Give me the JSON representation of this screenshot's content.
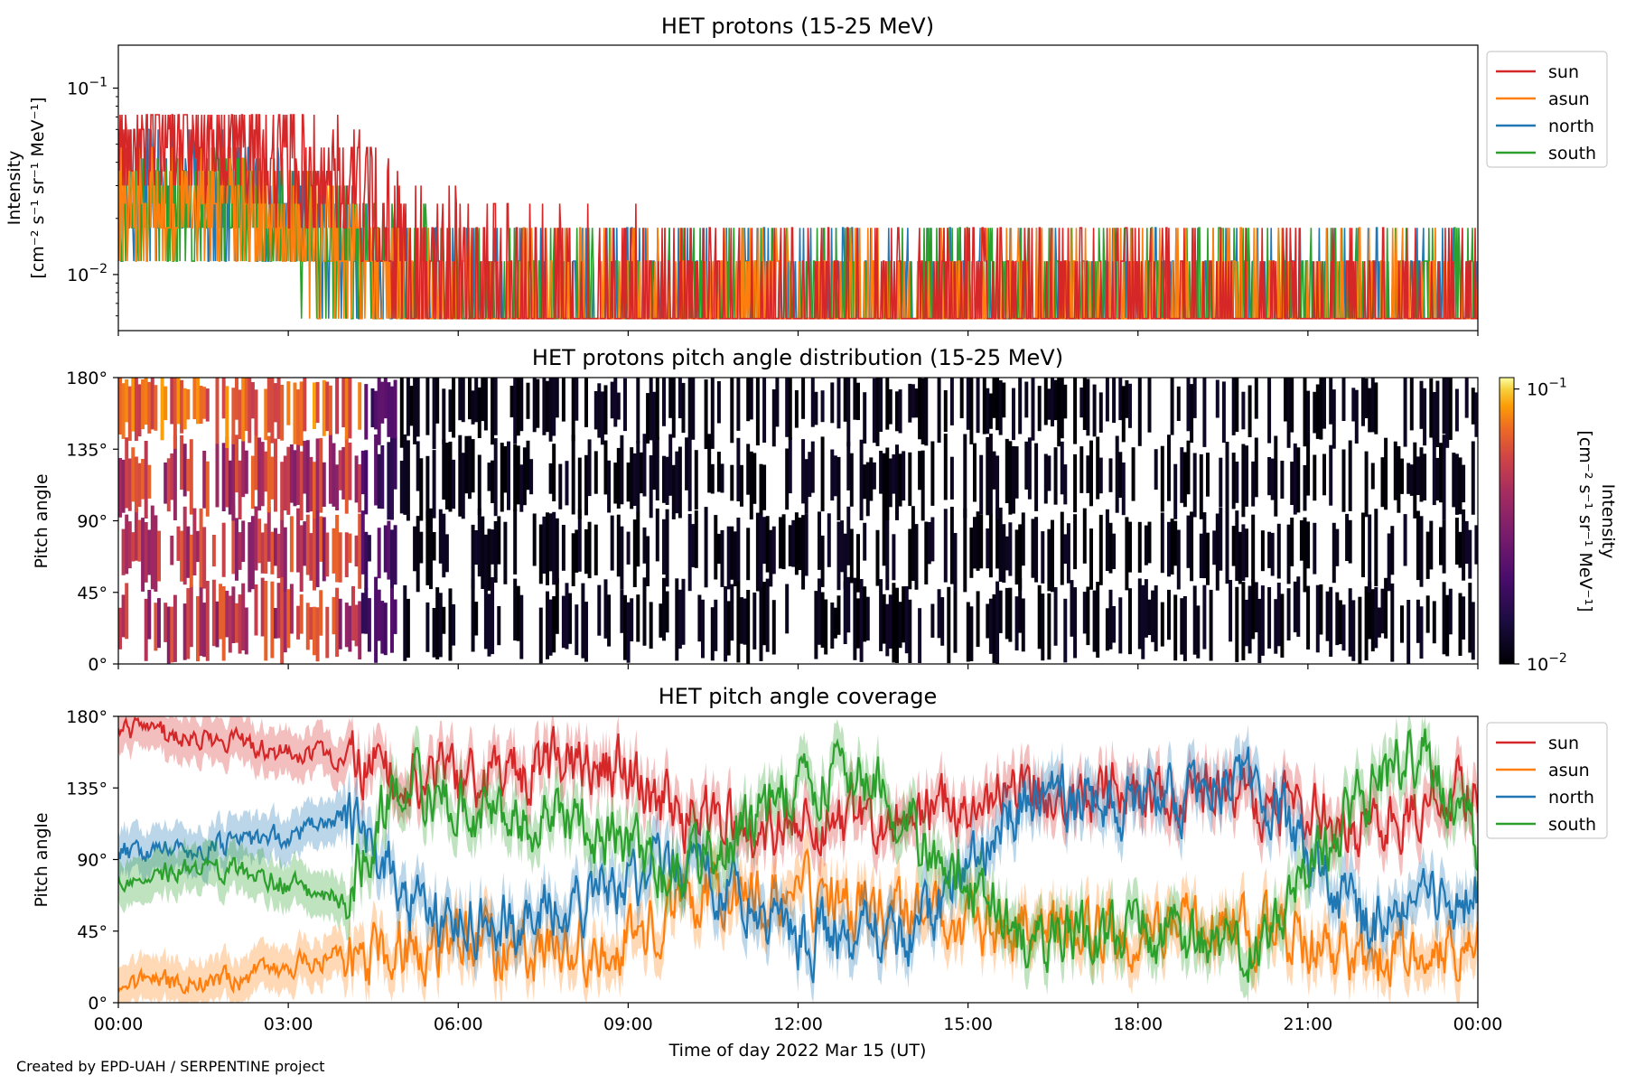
{
  "credit": "Created by EPD-UAH / SERPENTINE project",
  "colors": {
    "sun": "#d62728",
    "asun": "#ff7f0e",
    "north": "#1f77b4",
    "south": "#2ca02c"
  },
  "chart_data": [
    {
      "type": "line",
      "title": "HET protons (15-25 MeV)",
      "ylabel": [
        "Intensity",
        "[cm⁻² s⁻¹ sr⁻¹ MeV⁻¹]"
      ],
      "yscale": "log",
      "ylim": [
        0.005,
        0.17
      ],
      "yticks": [
        {
          "value": 0.1,
          "base": "10",
          "exp": "−1"
        },
        {
          "value": 0.01,
          "base": "10",
          "exp": "−2"
        }
      ],
      "xlim_hours": [
        0,
        24
      ],
      "legend": "outside-right",
      "series": [
        {
          "name": "sun",
          "profile": [
            {
              "x": "00:00",
              "y": 0.055
            },
            {
              "x": "01:00",
              "y": 0.06
            },
            {
              "x": "02:00",
              "y": 0.05
            },
            {
              "x": "03:00",
              "y": 0.04
            },
            {
              "x": "04:00",
              "y": 0.03
            },
            {
              "x": "05:00",
              "y": 0.015
            },
            {
              "x": "08:00",
              "y": 0.011
            },
            {
              "x": "12:00",
              "y": 0.009
            },
            {
              "x": "18:00",
              "y": 0.0085
            },
            {
              "x": "24:00",
              "y": 0.008
            }
          ]
        },
        {
          "name": "asun",
          "profile": [
            {
              "x": "00:00",
              "y": 0.02
            },
            {
              "x": "01:00",
              "y": 0.025
            },
            {
              "x": "02:00",
              "y": 0.022
            },
            {
              "x": "03:00",
              "y": 0.018
            },
            {
              "x": "04:00",
              "y": 0.014
            },
            {
              "x": "05:00",
              "y": 0.009
            },
            {
              "x": "08:00",
              "y": 0.008
            },
            {
              "x": "24:00",
              "y": 0.0075
            }
          ]
        },
        {
          "name": "north",
          "profile": [
            {
              "x": "00:00",
              "y": 0.025
            },
            {
              "x": "01:00",
              "y": 0.03
            },
            {
              "x": "02:00",
              "y": 0.026
            },
            {
              "x": "03:00",
              "y": 0.02
            },
            {
              "x": "04:00",
              "y": 0.015
            },
            {
              "x": "05:00",
              "y": 0.01
            },
            {
              "x": "08:00",
              "y": 0.008
            },
            {
              "x": "24:00",
              "y": 0.0075
            }
          ]
        },
        {
          "name": "south",
          "profile": [
            {
              "x": "00:00",
              "y": 0.022
            },
            {
              "x": "01:00",
              "y": 0.026
            },
            {
              "x": "02:00",
              "y": 0.022
            },
            {
              "x": "03:00",
              "y": 0.018
            },
            {
              "x": "04:00",
              "y": 0.014
            },
            {
              "x": "05:00",
              "y": 0.01
            },
            {
              "x": "08:00",
              "y": 0.008
            },
            {
              "x": "24:00",
              "y": 0.0075
            }
          ]
        }
      ]
    },
    {
      "type": "heatmap",
      "title": "HET protons pitch angle distribution (15-25 MeV)",
      "ylabel": "Pitch angle",
      "ylim": [
        0,
        180
      ],
      "yticks": [
        "0°",
        "45°",
        "90°",
        "135°",
        "180°"
      ],
      "xlim_hours": [
        0,
        24
      ],
      "colorbar": {
        "label": "Intensity",
        "units": "[cm⁻² s⁻¹ sr⁻¹ MeV⁻¹]",
        "scale": "log",
        "range": [
          0.01,
          0.11
        ],
        "ticks": [
          {
            "value": 0.1,
            "base": "10",
            "exp": "−1"
          },
          {
            "value": 0.01,
            "base": "10",
            "exp": "−2"
          }
        ],
        "colormap": "inferno"
      }
    },
    {
      "type": "line",
      "title": "HET pitch angle coverage",
      "ylabel": "Pitch angle",
      "xlabel": "Time of day 2022 Mar 15 (UT)",
      "ylim": [
        0,
        180
      ],
      "yticks": [
        "0°",
        "45°",
        "90°",
        "135°",
        "180°"
      ],
      "xlim_hours": [
        0,
        24
      ],
      "xticks": [
        "00:00",
        "03:00",
        "06:00",
        "09:00",
        "12:00",
        "15:00",
        "18:00",
        "21:00",
        "00:00"
      ],
      "legend": "outside-right",
      "series": [
        {
          "name": "sun",
          "profile": [
            {
              "x": "00:00",
              "y": 170
            },
            {
              "x": "02:00",
              "y": 165
            },
            {
              "x": "04:00",
              "y": 150
            },
            {
              "x": "06:00",
              "y": 140
            },
            {
              "x": "08:00",
              "y": 150
            },
            {
              "x": "09:00",
              "y": 145
            },
            {
              "x": "10:00",
              "y": 115
            },
            {
              "x": "12:00",
              "y": 110
            },
            {
              "x": "14:00",
              "y": 120
            },
            {
              "x": "16:00",
              "y": 135
            },
            {
              "x": "18:00",
              "y": 135
            },
            {
              "x": "20:00",
              "y": 130
            },
            {
              "x": "22:00",
              "y": 110
            },
            {
              "x": "24:00",
              "y": 140
            }
          ]
        },
        {
          "name": "asun",
          "profile": [
            {
              "x": "00:00",
              "y": 10
            },
            {
              "x": "02:00",
              "y": 15
            },
            {
              "x": "04:00",
              "y": 30
            },
            {
              "x": "06:00",
              "y": 40
            },
            {
              "x": "08:00",
              "y": 30
            },
            {
              "x": "09:00",
              "y": 40
            },
            {
              "x": "10:00",
              "y": 65
            },
            {
              "x": "12:00",
              "y": 70
            },
            {
              "x": "14:00",
              "y": 55
            },
            {
              "x": "16:00",
              "y": 45
            },
            {
              "x": "18:00",
              "y": 45
            },
            {
              "x": "20:00",
              "y": 50
            },
            {
              "x": "22:00",
              "y": 25
            },
            {
              "x": "24:00",
              "y": 40
            }
          ]
        },
        {
          "name": "north",
          "profile": [
            {
              "x": "00:00",
              "y": 95
            },
            {
              "x": "02:00",
              "y": 100
            },
            {
              "x": "03:00",
              "y": 105
            },
            {
              "x": "04:00",
              "y": 120
            },
            {
              "x": "05:00",
              "y": 70
            },
            {
              "x": "06:00",
              "y": 45
            },
            {
              "x": "08:00",
              "y": 60
            },
            {
              "x": "10:00",
              "y": 90
            },
            {
              "x": "12:00",
              "y": 40
            },
            {
              "x": "14:00",
              "y": 40
            },
            {
              "x": "16:00",
              "y": 130
            },
            {
              "x": "18:00",
              "y": 125
            },
            {
              "x": "20:00",
              "y": 140
            },
            {
              "x": "22:00",
              "y": 45
            },
            {
              "x": "24:00",
              "y": 70
            }
          ]
        },
        {
          "name": "south",
          "profile": [
            {
              "x": "00:00",
              "y": 80
            },
            {
              "x": "02:00",
              "y": 85
            },
            {
              "x": "03:00",
              "y": 75
            },
            {
              "x": "04:00",
              "y": 65
            },
            {
              "x": "05:00",
              "y": 145
            },
            {
              "x": "06:00",
              "y": 120
            },
            {
              "x": "08:00",
              "y": 115
            },
            {
              "x": "10:00",
              "y": 80
            },
            {
              "x": "12:00",
              "y": 135
            },
            {
              "x": "13:00",
              "y": 150
            },
            {
              "x": "14:00",
              "y": 110
            },
            {
              "x": "16:00",
              "y": 40
            },
            {
              "x": "18:00",
              "y": 45
            },
            {
              "x": "20:00",
              "y": 40
            },
            {
              "x": "22:00",
              "y": 130
            },
            {
              "x": "23:00",
              "y": 160
            },
            {
              "x": "24:00",
              "y": 100
            }
          ]
        }
      ]
    }
  ]
}
